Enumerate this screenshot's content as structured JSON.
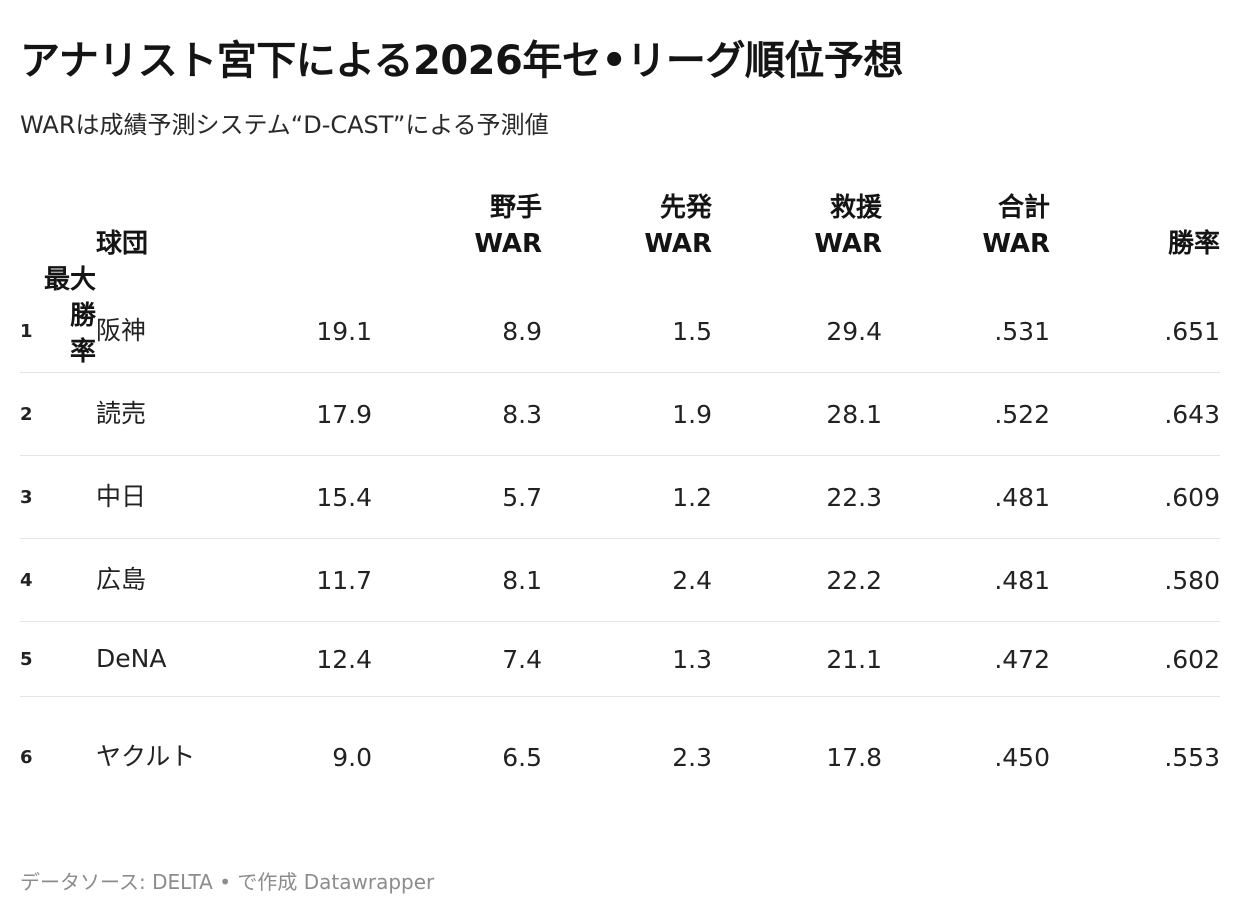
{
  "title": "アナリスト宮下による2026年セ•リーグ順位予想",
  "subtitle": "WARは成績予測システム“D-CAST”による予測値",
  "source_line": "データソース: DELTA • で作成 Datawrapper",
  "chart_data": {
    "type": "table",
    "title": "アナリスト宮下による2026年セ•リーグ順位予想",
    "subtitle": "WARは成績予測システム“D-CAST”による予測値",
    "columns": [
      "",
      "球団",
      "野手WAR",
      "先発WAR",
      "救援WAR",
      "合計WAR",
      "勝率",
      "最大勝率"
    ],
    "header": {
      "team": "球団",
      "fielder_war": [
        "野手",
        "WAR"
      ],
      "starter_war": [
        "先発",
        "WAR"
      ],
      "reliever_war": [
        "救援",
        "WAR"
      ],
      "total_war": [
        "合計",
        "WAR"
      ],
      "win_pct": "勝率",
      "max_win_pct": [
        "最大勝",
        "率"
      ]
    },
    "rows": [
      {
        "rank": "1",
        "team": "阪神",
        "fielder_war": "19.1",
        "starter_war": "8.9",
        "reliever_war": "1.5",
        "total_war": "29.4",
        "win_pct": ".531",
        "max_win_pct": ".651"
      },
      {
        "rank": "2",
        "team": "読売",
        "fielder_war": "17.9",
        "starter_war": "8.3",
        "reliever_war": "1.9",
        "total_war": "28.1",
        "win_pct": ".522",
        "max_win_pct": ".643"
      },
      {
        "rank": "3",
        "team": "中日",
        "fielder_war": "15.4",
        "starter_war": "5.7",
        "reliever_war": "1.2",
        "total_war": "22.3",
        "win_pct": ".481",
        "max_win_pct": ".609"
      },
      {
        "rank": "4",
        "team": "広島",
        "fielder_war": "11.7",
        "starter_war": "8.1",
        "reliever_war": "2.4",
        "total_war": "22.2",
        "win_pct": ".481",
        "max_win_pct": ".580"
      },
      {
        "rank": "5",
        "team": "DeNA",
        "fielder_war": "12.4",
        "starter_war": "7.4",
        "reliever_war": "1.3",
        "total_war": "21.1",
        "win_pct": ".472",
        "max_win_pct": ".602"
      },
      {
        "rank": "6",
        "team": "ヤクルト",
        "fielder_war": "9.0",
        "starter_war": "6.5",
        "reliever_war": "2.3",
        "total_war": "17.8",
        "win_pct": ".450",
        "max_win_pct": ".553"
      }
    ]
  }
}
